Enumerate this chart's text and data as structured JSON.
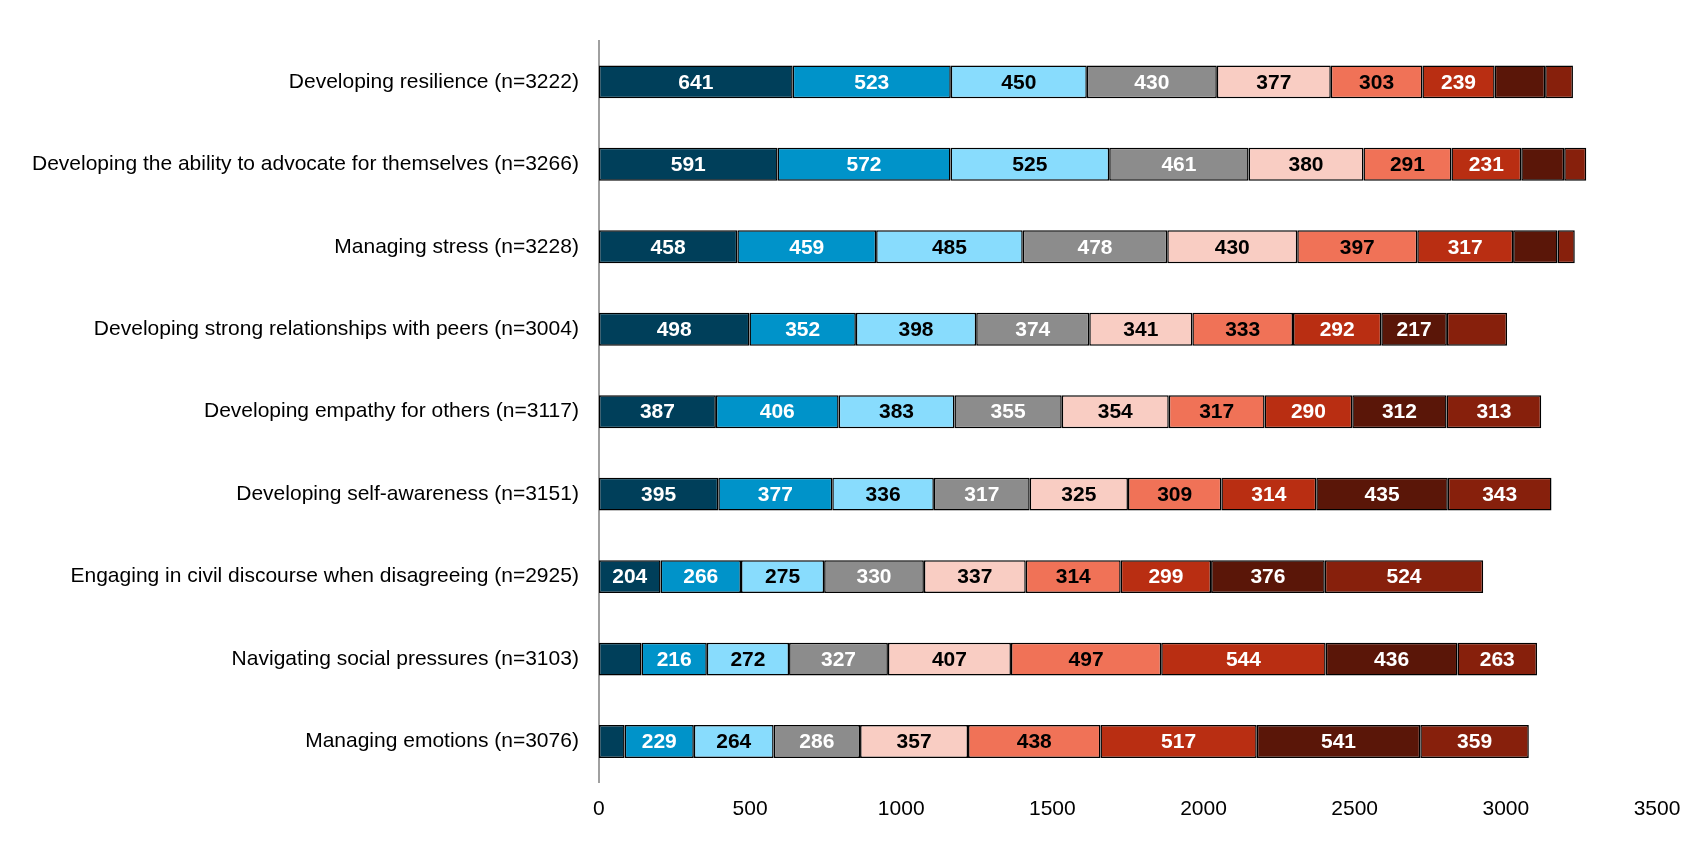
{
  "chart_data": {
    "type": "bar",
    "orientation": "horizontal",
    "stacked": true,
    "categories": [
      "Developing resilience (n=3222)",
      "Developing the ability to advocate for themselves (n=3266)",
      "Managing stress (n=3228)",
      "Developing strong relationships with peers (n=3004)",
      "Developing empathy for others (n=3117)",
      "Developing self-awareness (n=3151)",
      "Engaging in civil discourse when disagreeing (n=2925)",
      "Navigating social pressures (n=3103)",
      "Managing emotions (n=3076)"
    ],
    "series": [
      {
        "color": "#003f5a",
        "values": [
          641,
          591,
          458,
          498,
          387,
          395,
          204,
          141,
          85
        ],
        "value_labels": [
          "641",
          "591",
          "458",
          "498",
          "387",
          "395",
          "204",
          null,
          null
        ]
      },
      {
        "color": "#0093c9",
        "values": [
          523,
          572,
          459,
          352,
          406,
          377,
          266,
          216,
          229
        ],
        "value_labels": [
          "523",
          "572",
          "459",
          "352",
          "406",
          "377",
          "266",
          "216",
          "229"
        ]
      },
      {
        "color": "#88dcfd",
        "values": [
          450,
          525,
          485,
          398,
          383,
          336,
          275,
          272,
          264
        ],
        "value_labels": [
          "450",
          "525",
          "485",
          "398",
          "383",
          "336",
          "275",
          "272",
          "264"
        ]
      },
      {
        "color": "#8c8c8c",
        "values": [
          430,
          461,
          478,
          374,
          355,
          317,
          330,
          327,
          286
        ],
        "value_labels": [
          "430",
          "461",
          "478",
          "374",
          "355",
          "317",
          "330",
          "327",
          "286"
        ]
      },
      {
        "color": "#f9cdc3",
        "values": [
          377,
          380,
          430,
          341,
          354,
          325,
          337,
          407,
          357
        ],
        "value_labels": [
          "377",
          "380",
          "430",
          "341",
          "354",
          "325",
          "337",
          "407",
          "357"
        ]
      },
      {
        "color": "#f07257",
        "values": [
          303,
          291,
          397,
          333,
          317,
          309,
          314,
          497,
          438
        ],
        "value_labels": [
          "303",
          "291",
          "397",
          "333",
          "317",
          "309",
          "314",
          "497",
          "438"
        ]
      },
      {
        "color": "#b92e12",
        "values": [
          239,
          231,
          317,
          292,
          290,
          314,
          299,
          544,
          517
        ],
        "value_labels": [
          "239",
          "231",
          "317",
          "292",
          "290",
          "314",
          "299",
          "544",
          "517"
        ]
      },
      {
        "color": "#5a1608",
        "values": [
          167,
          142,
          147,
          217,
          312,
          435,
          376,
          436,
          541
        ],
        "value_labels": [
          null,
          null,
          null,
          "217",
          "312",
          "435",
          "376",
          "436",
          "541"
        ]
      },
      {
        "color": "#87200c",
        "values": [
          92,
          73,
          57,
          199,
          313,
          343,
          524,
          263,
          359
        ],
        "value_labels": [
          null,
          null,
          null,
          null,
          "313",
          "343",
          "524",
          "263",
          "359"
        ]
      }
    ],
    "xlim": [
      0,
      3500
    ],
    "xticks": [
      0,
      500,
      1000,
      1500,
      2000,
      2500,
      3000,
      3500
    ],
    "grid": false,
    "legend": false
  }
}
